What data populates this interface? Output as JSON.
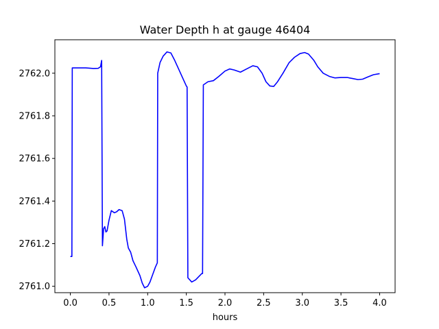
{
  "chart_data": {
    "type": "line",
    "title": "Water Depth h at gauge 46404",
    "xlabel": "hours",
    "ylabel": "",
    "xlim": [
      -0.2,
      4.2
    ],
    "ylim": [
      2760.97,
      2762.157
    ],
    "xticks": [
      0.0,
      0.5,
      1.0,
      1.5,
      2.0,
      2.5,
      3.0,
      3.5,
      4.0
    ],
    "xtick_labels": [
      "0.0",
      "0.5",
      "1.0",
      "1.5",
      "2.0",
      "2.5",
      "3.0",
      "3.5",
      "4.0"
    ],
    "yticks": [
      2761.0,
      2761.2,
      2761.4,
      2761.6,
      2761.8,
      2762.0
    ],
    "ytick_labels": [
      "2761.0",
      "2761.2",
      "2761.4",
      "2761.6",
      "2761.8",
      "2762.0"
    ],
    "grid": false,
    "colors": {
      "line": "#0000ff",
      "axes": "#000000",
      "background": "#ffffff"
    },
    "series": [
      {
        "values": [
          [
            0.0,
            2761.14
          ],
          [
            0.02,
            2761.14
          ],
          [
            0.025,
            2762.025
          ],
          [
            0.1,
            2762.025
          ],
          [
            0.2,
            2762.025
          ],
          [
            0.3,
            2762.022
          ],
          [
            0.36,
            2762.023
          ],
          [
            0.39,
            2762.03
          ],
          [
            0.405,
            2762.06
          ],
          [
            0.415,
            2761.19
          ],
          [
            0.43,
            2761.27
          ],
          [
            0.445,
            2761.28
          ],
          [
            0.46,
            2761.255
          ],
          [
            0.475,
            2761.26
          ],
          [
            0.5,
            2761.31
          ],
          [
            0.53,
            2761.355
          ],
          [
            0.57,
            2761.345
          ],
          [
            0.6,
            2761.35
          ],
          [
            0.63,
            2761.36
          ],
          [
            0.67,
            2761.355
          ],
          [
            0.7,
            2761.315
          ],
          [
            0.73,
            2761.22
          ],
          [
            0.75,
            2761.18
          ],
          [
            0.78,
            2761.16
          ],
          [
            0.81,
            2761.12
          ],
          [
            0.85,
            2761.09
          ],
          [
            0.9,
            2761.05
          ],
          [
            0.93,
            2761.015
          ],
          [
            0.96,
            2760.993
          ],
          [
            1.0,
            2761.0
          ],
          [
            1.03,
            2761.02
          ],
          [
            1.07,
            2761.06
          ],
          [
            1.1,
            2761.09
          ],
          [
            1.125,
            2761.11
          ],
          [
            1.13,
            2762.0
          ],
          [
            1.16,
            2762.05
          ],
          [
            1.2,
            2762.08
          ],
          [
            1.25,
            2762.1
          ],
          [
            1.3,
            2762.095
          ],
          [
            1.35,
            2762.06
          ],
          [
            1.4,
            2762.02
          ],
          [
            1.45,
            2761.98
          ],
          [
            1.5,
            2761.94
          ],
          [
            1.51,
            2761.935
          ],
          [
            1.52,
            2761.04
          ],
          [
            1.57,
            2761.02
          ],
          [
            1.62,
            2761.03
          ],
          [
            1.7,
            2761.06
          ],
          [
            1.71,
            2761.06
          ],
          [
            1.72,
            2761.945
          ],
          [
            1.78,
            2761.96
          ],
          [
            1.85,
            2761.965
          ],
          [
            1.92,
            2761.985
          ],
          [
            2.0,
            2762.01
          ],
          [
            2.06,
            2762.02
          ],
          [
            2.12,
            2762.015
          ],
          [
            2.2,
            2762.005
          ],
          [
            2.28,
            2762.02
          ],
          [
            2.36,
            2762.035
          ],
          [
            2.42,
            2762.03
          ],
          [
            2.48,
            2762.0
          ],
          [
            2.53,
            2761.96
          ],
          [
            2.58,
            2761.94
          ],
          [
            2.63,
            2761.938
          ],
          [
            2.68,
            2761.96
          ],
          [
            2.75,
            2762.0
          ],
          [
            2.83,
            2762.05
          ],
          [
            2.9,
            2762.075
          ],
          [
            2.97,
            2762.092
          ],
          [
            3.03,
            2762.097
          ],
          [
            3.08,
            2762.09
          ],
          [
            3.15,
            2762.06
          ],
          [
            3.2,
            2762.03
          ],
          [
            3.27,
            2762.0
          ],
          [
            3.35,
            2761.985
          ],
          [
            3.42,
            2761.978
          ],
          [
            3.5,
            2761.98
          ],
          [
            3.58,
            2761.98
          ],
          [
            3.65,
            2761.975
          ],
          [
            3.72,
            2761.97
          ],
          [
            3.78,
            2761.972
          ],
          [
            3.85,
            2761.983
          ],
          [
            3.92,
            2761.993
          ],
          [
            4.0,
            2761.998
          ]
        ]
      }
    ]
  }
}
